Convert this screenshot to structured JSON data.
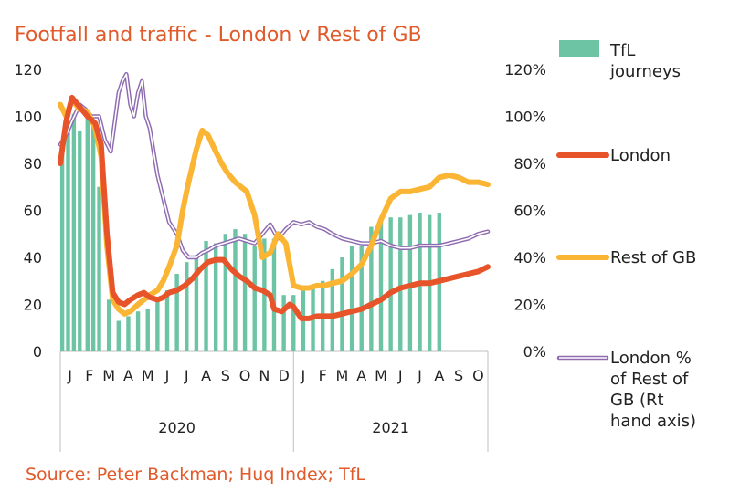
{
  "title": "Footfall and traffic - London v Rest of GB",
  "source": "Source: Peter Backman; Huq Index; TfL",
  "colors": {
    "title": "#e05a2a",
    "tfl": "#6cc4a4",
    "london": "#e8542a",
    "rest_of_gb": "#fbb534",
    "london_pct": "#8e6bb0"
  },
  "chart_data": {
    "type": "bar",
    "left_axis": {
      "ticks": [
        "0",
        "20",
        "40",
        "60",
        "80",
        "100",
        "120"
      ],
      "ylim": [
        0,
        120
      ]
    },
    "right_axis": {
      "ticks": [
        "0%",
        "20%",
        "40%",
        "60%",
        "80%",
        "100%",
        "120%"
      ],
      "ylim": [
        0,
        120
      ]
    },
    "months": [
      "J",
      "F",
      "M",
      "A",
      "M",
      "J",
      "J",
      "A",
      "S",
      "O",
      "N",
      "D",
      "J",
      "F",
      "M",
      "A",
      "M",
      "J",
      "J",
      "A",
      "S",
      "O"
    ],
    "years": [
      {
        "label": "2020",
        "start": 0,
        "end": 12
      },
      {
        "label": "2021",
        "start": 12,
        "end": 22
      }
    ],
    "series": [
      {
        "name": "TfL journeys",
        "type": "bar",
        "axis": "left",
        "x": [
          0.1,
          0.4,
          0.7,
          1.0,
          1.4,
          1.7,
          2.0,
          2.5,
          3.0,
          3.5,
          4.0,
          4.5,
          5.0,
          5.5,
          6.0,
          6.5,
          7.0,
          7.5,
          8.0,
          8.5,
          9.0,
          9.5,
          10.0,
          10.5,
          11.0,
          11.5,
          12.0,
          12.5,
          13.0,
          13.5,
          14.0,
          14.5,
          15.0,
          15.5,
          16.0,
          16.5,
          17.0,
          17.5,
          18.0,
          18.5,
          19.0,
          19.5
        ],
        "values": [
          89,
          94,
          101,
          94,
          101,
          98,
          70,
          22,
          13,
          15,
          17,
          18,
          22,
          26,
          33,
          38,
          41,
          47,
          46,
          50,
          52,
          50,
          45,
          48,
          48,
          24,
          24,
          26,
          27,
          30,
          35,
          40,
          45,
          45,
          53,
          55,
          57,
          57,
          58,
          59,
          58,
          59
        ]
      },
      {
        "name": "London",
        "type": "line",
        "axis": "left",
        "x": [
          0,
          0.3,
          0.6,
          1.0,
          1.4,
          1.8,
          2.1,
          2.4,
          2.7,
          3.0,
          3.3,
          3.6,
          4.0,
          4.3,
          4.6,
          5.0,
          5.3,
          5.6,
          6.0,
          6.4,
          6.8,
          7.2,
          7.6,
          8.0,
          8.4,
          8.8,
          9.2,
          9.6,
          10.0,
          10.4,
          10.8,
          11.0,
          11.4,
          11.8,
          12.0,
          12.4,
          12.8,
          13.2,
          13.6,
          14.0,
          14.5,
          15.0,
          15.5,
          16.0,
          16.5,
          17.0,
          17.5,
          18.0,
          18.5,
          19.0,
          19.5,
          20.0,
          20.5,
          21.0,
          21.5,
          22.0
        ],
        "values": [
          80,
          98,
          108,
          104,
          100,
          97,
          88,
          50,
          25,
          21,
          20,
          22,
          24,
          25,
          23,
          22,
          23,
          25,
          26,
          28,
          31,
          35,
          38,
          39,
          39,
          35,
          32,
          30,
          27,
          26,
          24,
          18,
          17,
          20,
          19,
          14,
          14,
          15,
          15,
          15,
          16,
          17,
          18,
          20,
          22,
          25,
          27,
          28,
          29,
          29,
          30,
          31,
          32,
          33,
          34,
          36
        ]
      },
      {
        "name": "Rest of GB",
        "type": "line",
        "axis": "left",
        "x": [
          0,
          0.3,
          0.6,
          1.0,
          1.4,
          1.8,
          2.1,
          2.4,
          2.7,
          3.0,
          3.3,
          3.6,
          4.0,
          4.3,
          4.6,
          5.0,
          5.3,
          5.6,
          6.0,
          6.3,
          6.6,
          7.0,
          7.3,
          7.6,
          8.0,
          8.3,
          8.6,
          9.0,
          9.3,
          9.6,
          10.0,
          10.4,
          10.8,
          11.2,
          11.6,
          12.0,
          12.4,
          12.8,
          13.2,
          13.6,
          14.0,
          14.5,
          15.0,
          15.5,
          16.0,
          16.5,
          17.0,
          17.5,
          18.0,
          18.5,
          19.0,
          19.5,
          20.0,
          20.5,
          21.0,
          21.5,
          22.0
        ],
        "values": [
          105,
          100,
          107,
          103,
          102,
          95,
          83,
          45,
          22,
          18,
          16,
          17,
          20,
          22,
          24,
          26,
          30,
          36,
          45,
          60,
          72,
          86,
          94,
          92,
          85,
          80,
          76,
          72,
          70,
          68,
          58,
          40,
          42,
          50,
          46,
          28,
          27,
          27,
          28,
          28,
          29,
          30,
          33,
          37,
          45,
          56,
          65,
          68,
          68,
          69,
          70,
          74,
          75,
          74,
          72,
          72,
          71
        ]
      },
      {
        "name": "London % of Rest of GB (Rt hand axis)",
        "type": "line",
        "axis": "right",
        "x": [
          0,
          0.3,
          0.6,
          1.0,
          1.3,
          1.6,
          2.0,
          2.3,
          2.6,
          3.0,
          3.2,
          3.4,
          3.6,
          3.8,
          4.0,
          4.2,
          4.4,
          4.6,
          4.8,
          5.0,
          5.3,
          5.6,
          6.0,
          6.3,
          6.6,
          7.0,
          7.3,
          7.6,
          8.0,
          8.4,
          8.8,
          9.2,
          9.6,
          10.0,
          10.4,
          10.8,
          11.2,
          11.6,
          12.0,
          12.4,
          12.8,
          13.2,
          13.6,
          14.0,
          14.5,
          15.0,
          15.5,
          16.0,
          16.5,
          17.0,
          17.5,
          18.0,
          18.5,
          19.0,
          19.5,
          20.0,
          20.5,
          21.0,
          21.5,
          22.0
        ],
        "values": [
          88,
          92,
          98,
          105,
          103,
          100,
          100,
          90,
          85,
          110,
          115,
          118,
          105,
          100,
          110,
          115,
          100,
          95,
          85,
          75,
          65,
          55,
          50,
          43,
          40,
          40,
          42,
          43,
          45,
          46,
          47,
          48,
          47,
          46,
          50,
          54,
          48,
          52,
          55,
          54,
          55,
          53,
          52,
          50,
          48,
          47,
          46,
          46,
          47,
          45,
          44,
          44,
          45,
          45,
          45,
          46,
          47,
          48,
          50,
          51
        ]
      }
    ]
  },
  "legend": {
    "tfl": [
      "TfL",
      "journeys"
    ],
    "london": [
      "London"
    ],
    "rest": [
      "Rest of GB"
    ],
    "pct": [
      "London %",
      "of Rest of",
      "GB (Rt",
      "hand axis)"
    ]
  }
}
